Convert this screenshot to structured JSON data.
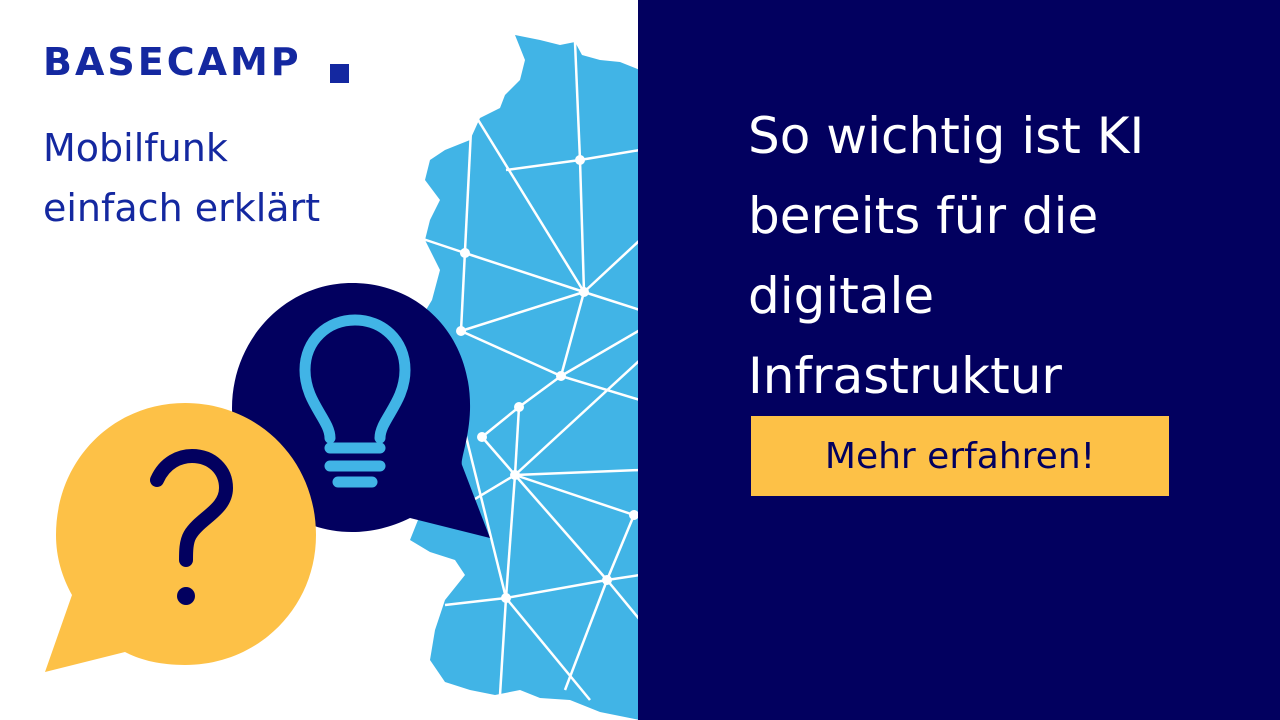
{
  "brand": {
    "logo_text": "BASECAMP",
    "color": "#1428A0"
  },
  "tagline": [
    "Mobilfunk",
    "einfach erklärt"
  ],
  "headline": [
    "So wichtig ist KI",
    "bereits für die",
    "digitale",
    "Infrastruktur"
  ],
  "cta": {
    "label": "Mehr erfahren!"
  },
  "colors": {
    "navy": "#02005F",
    "yellow": "#FDC147",
    "map_blue": "#41B4E6"
  },
  "icons": [
    "germany-network-map",
    "lightbulb-icon",
    "question-mark-icon"
  ]
}
